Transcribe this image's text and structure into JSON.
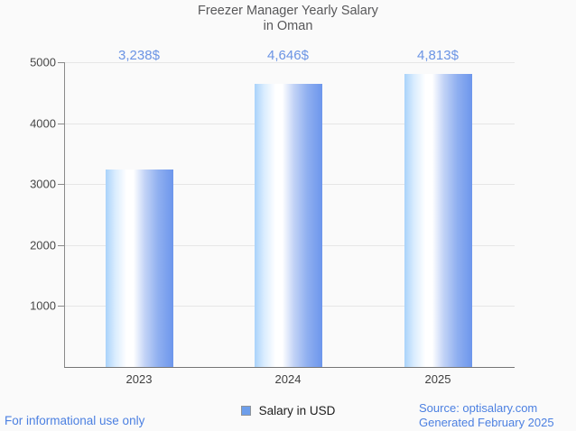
{
  "chart_data": {
    "type": "bar",
    "title": "Freezer Manager Yearly Salary\nin Oman",
    "categories": [
      "2023",
      "2024",
      "2025"
    ],
    "series": [
      {
        "name": "Salary in USD",
        "values": [
          3238,
          4646,
          4813
        ]
      }
    ],
    "value_labels": [
      "3,238$",
      "4,646$",
      "4,813$"
    ],
    "ylim": [
      0,
      5000
    ],
    "yticks": [
      "5000",
      "4000",
      "3000",
      "2000",
      "1000"
    ],
    "xlabel": "",
    "ylabel": "",
    "grid": true,
    "legend_position": "bottom"
  },
  "legend": {
    "label": "Salary in USD"
  },
  "footer": {
    "disclaimer": "For informational use only",
    "source": "Source: optisalary.com",
    "generated": "Generated February 2025"
  },
  "colors": {
    "bar_main": "#6d96ec",
    "bar_light": "#a9d2fa",
    "value_label": "#6b94e4",
    "footer_text": "#4c80e1",
    "title_text": "#58585a",
    "gridline": "#e6e6e6",
    "background": "#fafafa"
  }
}
